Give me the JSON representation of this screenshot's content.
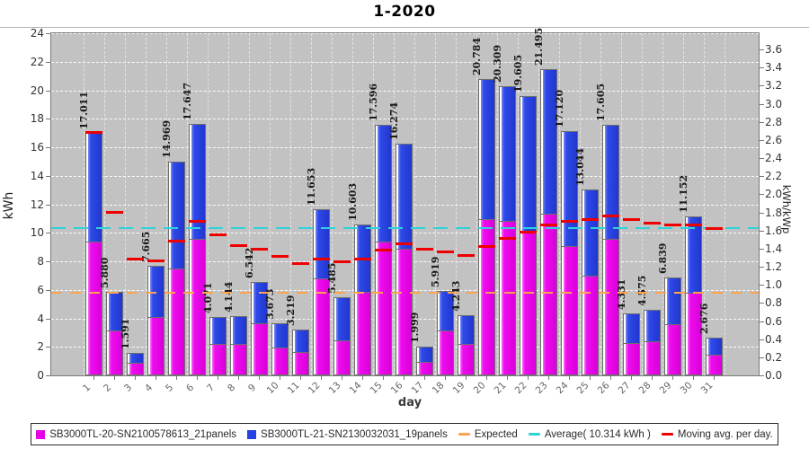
{
  "title": "1-2020",
  "chart_data": {
    "type": "bar",
    "stacked": true,
    "title": "1-2020",
    "xlabel": "day",
    "ylabel_left": "kWh",
    "ylabel_right": "kWh/kWp",
    "grid": true,
    "legend_position": "bottom",
    "plot_background": "#C2C2C2",
    "y_axis_left": {
      "label": "kWh",
      "min": 0,
      "max": 24,
      "tick_step": 2
    },
    "y_axis_right": {
      "label": "kWh/kWp",
      "min": 0.0,
      "max": 3.6,
      "tick_step": 0.2,
      "top_of_plot_value": 3.78
    },
    "days": [
      1,
      2,
      3,
      4,
      5,
      6,
      7,
      8,
      9,
      10,
      11,
      12,
      13,
      14,
      15,
      16,
      17,
      18,
      19,
      20,
      21,
      22,
      23,
      24,
      25,
      26,
      27,
      28,
      29,
      30,
      31
    ],
    "series": [
      {
        "name": "SB3000TL-20-SN2100578613_21panels",
        "color": "#E600E6",
        "values": [
          9.25,
          3.05,
          0.75,
          3.96,
          7.4,
          9.46,
          2.05,
          2.11,
          3.54,
          1.8,
          1.54,
          6.65,
          2.33,
          5.71,
          9.25,
          8.78,
          0.84,
          3.05,
          2.11,
          10.84,
          10.73,
          10.03,
          11.22,
          8.97,
          6.86,
          9.46,
          2.16,
          2.3,
          3.47,
          5.65,
          1.31
        ]
      },
      {
        "name": "SB3000TL-21-SN2130032031_19panels",
        "color": "#2442E6",
        "values": [
          7.761,
          2.83,
          0.841,
          3.705,
          7.569,
          8.187,
          2.021,
          2.034,
          3.002,
          1.873,
          1.679,
          5.003,
          3.155,
          4.893,
          8.346,
          7.494,
          1.159,
          2.869,
          2.133,
          9.944,
          9.579,
          9.575,
          10.275,
          8.15,
          6.184,
          8.145,
          2.171,
          2.275,
          3.369,
          5.502,
          1.366
        ]
      }
    ],
    "totals": [
      17.011,
      5.88,
      1.591,
      7.665,
      14.969,
      17.647,
      4.071,
      4.144,
      6.542,
      3.673,
      3.219,
      11.653,
      5.485,
      10.603,
      17.596,
      16.274,
      1.999,
      5.919,
      4.243,
      20.784,
      20.309,
      19.605,
      21.495,
      17.12,
      13.044,
      17.605,
      4.331,
      4.575,
      6.839,
      11.152,
      2.676
    ],
    "bar_value_labels": [
      "17.011",
      "5.880",
      "1.591",
      "7.665",
      "14.969",
      "17.647",
      "4.071",
      "4.144",
      "6.542",
      "3.673",
      "3.219",
      "11.653",
      "5.485",
      "10.603",
      "17.596",
      "16.274",
      "1.999",
      "5.919",
      "4.243",
      "20.784",
      "20.309",
      "19.605",
      "21.495",
      "17.120",
      "13.044",
      "17.605",
      "4.331",
      "4.575",
      "6.839",
      "11.152",
      "2.676"
    ],
    "reference_lines": {
      "expected": {
        "label": "Expected",
        "color": "#FFA34F",
        "value": 5.78
      },
      "average": {
        "label": "Average( 10.314 kWh )",
        "color": "#2ED3D9",
        "value": 10.314
      },
      "moving_avg": {
        "label": "Moving avg. per day.",
        "color": "#EE0000",
        "values": [
          17.011,
          11.446,
          8.161,
          8.037,
          9.423,
          10.794,
          9.833,
          9.122,
          8.836,
          8.319,
          7.856,
          8.172,
          7.965,
          8.154,
          8.783,
          9.251,
          8.825,
          8.663,
          8.431,
          9.048,
          9.585,
          10.04,
          10.538,
          10.812,
          10.902,
          11.16,
          10.907,
          10.68,
          10.548,
          10.568,
          10.314
        ]
      }
    }
  },
  "legend": {
    "items": [
      {
        "label": "SB3000TL-20-SN2100578613_21panels",
        "swatch": "square",
        "color": "#E600E6"
      },
      {
        "label": "SB3000TL-21-SN2130032031_19panels",
        "swatch": "square",
        "color": "#2442E6"
      },
      {
        "label": "Expected",
        "swatch": "line",
        "color": "#FFA34F"
      },
      {
        "label": "Average( 10.314 kWh )",
        "swatch": "line",
        "color": "#2ED3D9"
      },
      {
        "label": "Moving avg. per day.",
        "swatch": "line",
        "color": "#EE0000"
      }
    ]
  }
}
